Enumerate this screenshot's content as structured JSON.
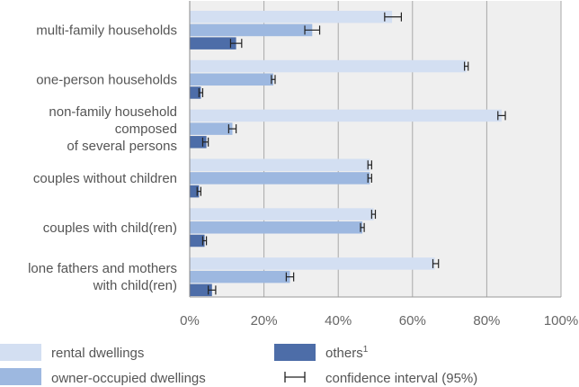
{
  "chart_data": {
    "type": "bar",
    "orientation": "horizontal",
    "categories": [
      [
        "multi-family households"
      ],
      [
        "one-person households"
      ],
      [
        "non-family household",
        "composed",
        "of several persons"
      ],
      [
        "couples without children"
      ],
      [
        "couples with child(ren)"
      ],
      [
        "lone fathers and mothers",
        "with child(ren)"
      ]
    ],
    "series": [
      {
        "name": "rental dwellings",
        "color": "#d3dff2",
        "values": [
          54.5,
          74.5,
          84,
          48.5,
          49.5,
          66
        ],
        "ci": [
          [
            52.5,
            57
          ],
          [
            74,
            75
          ],
          [
            83,
            85
          ],
          [
            48,
            49
          ],
          [
            49,
            50
          ],
          [
            65.5,
            67
          ]
        ]
      },
      {
        "name": "owner-occupied dwellings",
        "color": "#9db8e0",
        "values": [
          33,
          22.5,
          11.5,
          48.5,
          46.5,
          27
        ],
        "ci": [
          [
            31,
            35
          ],
          [
            22,
            23
          ],
          [
            10.5,
            12.5
          ],
          [
            48,
            49
          ],
          [
            46,
            47
          ],
          [
            26,
            28
          ]
        ]
      },
      {
        "name": "others",
        "name_superscript": "1",
        "color": "#4d6da8",
        "values": [
          12.5,
          3,
          4.5,
          2.5,
          4,
          6
        ],
        "ci": [
          [
            11,
            14
          ],
          [
            2.5,
            3.5
          ],
          [
            3.5,
            5
          ],
          [
            2,
            3
          ],
          [
            3.5,
            4.5
          ],
          [
            5,
            7
          ]
        ]
      }
    ],
    "x_ticks": [
      "0%",
      "20%",
      "40%",
      "60%",
      "80%",
      "100%"
    ],
    "xlim": [
      0,
      100
    ],
    "grid": true,
    "legend": {
      "position": "bottom",
      "ci_label": "confidence interval (95%)"
    }
  }
}
